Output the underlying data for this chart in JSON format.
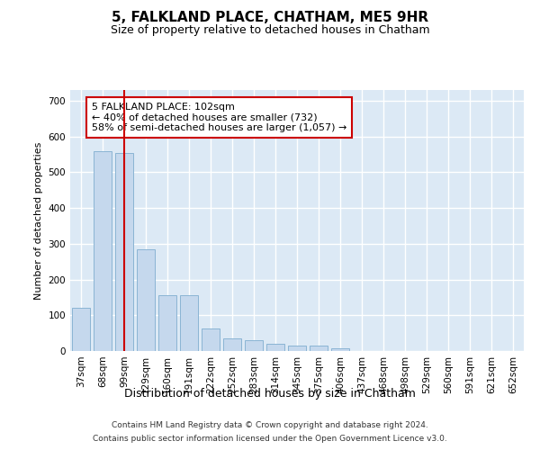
{
  "title": "5, FALKLAND PLACE, CHATHAM, ME5 9HR",
  "subtitle": "Size of property relative to detached houses in Chatham",
  "xlabel": "Distribution of detached houses by size in Chatham",
  "ylabel": "Number of detached properties",
  "categories": [
    "37sqm",
    "68sqm",
    "99sqm",
    "129sqm",
    "160sqm",
    "191sqm",
    "222sqm",
    "252sqm",
    "283sqm",
    "314sqm",
    "345sqm",
    "375sqm",
    "406sqm",
    "437sqm",
    "468sqm",
    "498sqm",
    "529sqm",
    "560sqm",
    "591sqm",
    "621sqm",
    "652sqm"
  ],
  "values": [
    120,
    560,
    555,
    285,
    155,
    155,
    62,
    35,
    30,
    20,
    15,
    15,
    8,
    0,
    0,
    0,
    0,
    0,
    0,
    0,
    0
  ],
  "bar_color": "#c5d8ed",
  "bar_edge_color": "#8ab4d4",
  "vline_x_index": 2,
  "vline_color": "#cc0000",
  "annotation_text": "5 FALKLAND PLACE: 102sqm\n← 40% of detached houses are smaller (732)\n58% of semi-detached houses are larger (1,057) →",
  "annotation_box_color": "#ffffff",
  "annotation_box_edge": "#cc0000",
  "annotation_fontsize": 8,
  "fig_bg_color": "#ffffff",
  "plot_bg_color": "#dce9f5",
  "grid_color": "#ffffff",
  "title_fontsize": 11,
  "subtitle_fontsize": 9,
  "xlabel_fontsize": 9,
  "ylabel_fontsize": 8,
  "tick_fontsize": 7.5,
  "ylim": [
    0,
    730
  ],
  "yticks": [
    0,
    100,
    200,
    300,
    400,
    500,
    600,
    700
  ],
  "footer_line1": "Contains HM Land Registry data © Crown copyright and database right 2024.",
  "footer_line2": "Contains public sector information licensed under the Open Government Licence v3.0."
}
